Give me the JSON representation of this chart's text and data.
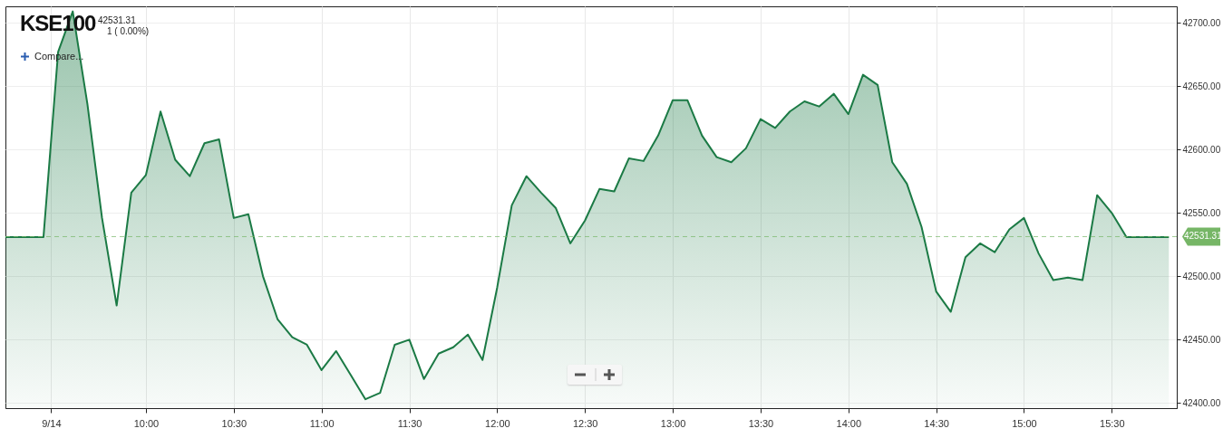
{
  "chart_data": {
    "type": "area",
    "title": "KSE100",
    "annotations": [
      "42531.31",
      "1 ( 0.00%)",
      "Compare..."
    ],
    "x": [
      9.2,
      9.4167,
      9.5,
      9.5833,
      9.6667,
      9.75,
      9.8333,
      9.9167,
      10,
      10.0833,
      10.1667,
      10.25,
      10.3333,
      10.4167,
      10.5,
      10.5833,
      10.6667,
      10.75,
      10.8333,
      10.9167,
      11,
      11.0833,
      11.1667,
      11.25,
      11.3333,
      11.4167,
      11.5,
      11.5833,
      11.6667,
      11.75,
      11.8333,
      11.9167,
      12,
      12.0833,
      12.1667,
      12.25,
      12.3333,
      12.4167,
      12.5,
      12.5833,
      12.6667,
      12.75,
      12.8333,
      12.9167,
      13,
      13.0833,
      13.1667,
      13.25,
      13.3333,
      13.4167,
      13.5,
      13.5833,
      13.6667,
      13.75,
      13.8333,
      13.9167,
      14,
      14.0833,
      14.1667,
      14.25,
      14.3333,
      14.4167,
      14.5,
      14.5833,
      14.6667,
      14.75,
      14.8333,
      14.9167,
      15,
      15.0833,
      15.1667,
      15.25,
      15.3333,
      15.4167,
      15.5,
      15.5833,
      15.825
    ],
    "series": [
      {
        "color": "#1b7a45",
        "values": [
          42531,
          42531,
          42677,
          42709,
          42636,
          42546,
          42477,
          42566,
          42580,
          42630,
          42592,
          42579,
          42605,
          42608,
          42546,
          42549,
          42500,
          42466,
          42452,
          42446,
          42426,
          42441,
          42422,
          42403,
          42408,
          42446,
          42450,
          42419,
          42439,
          42444,
          42454,
          42434,
          42491,
          42556,
          42579,
          42566,
          42554,
          42526,
          42544,
          42569,
          42567,
          42593,
          42591,
          42611,
          42639,
          42639,
          42611,
          42594,
          42590,
          42601,
          42624,
          42617,
          42630,
          42638,
          42634,
          42644,
          42628,
          42659,
          42651,
          42590,
          42573,
          42539,
          42488,
          42472,
          42515,
          42526,
          42519,
          42537,
          42546,
          42518,
          42497,
          42499,
          42497,
          42564,
          42550,
          42531,
          42531
        ]
      }
    ],
    "xlim": [
      9.2,
      15.87
    ],
    "xticks": [
      {
        "value": 9.46,
        "label": "9/14"
      },
      {
        "value": 10,
        "label": "10:00"
      },
      {
        "value": 10.5,
        "label": "10:30"
      },
      {
        "value": 11,
        "label": "11:00"
      },
      {
        "value": 11.5,
        "label": "11:30"
      },
      {
        "value": 12,
        "label": "12:00"
      },
      {
        "value": 12.5,
        "label": "12:30"
      },
      {
        "value": 13,
        "label": "13:00"
      },
      {
        "value": 13.5,
        "label": "13:30"
      },
      {
        "value": 14,
        "label": "14:00"
      },
      {
        "value": 14.5,
        "label": "14:30"
      },
      {
        "value": 15,
        "label": "15:00"
      },
      {
        "value": 15.5,
        "label": "15:30"
      }
    ],
    "ylim": [
      42396,
      42713
    ],
    "yticks": [
      {
        "value": 42400,
        "label": "42400.00"
      },
      {
        "value": 42450,
        "label": "42450.00"
      },
      {
        "value": 42500,
        "label": "42500.00"
      },
      {
        "value": 42550,
        "label": "42550.00"
      },
      {
        "value": 42600,
        "label": "42600.00"
      },
      {
        "value": 42650,
        "label": "42650.00"
      },
      {
        "value": 42700,
        "label": "42700.00"
      }
    ],
    "ref_lines": [
      {
        "axis": "y",
        "value": 42531.31,
        "label": "42531.31",
        "color": "#76b666",
        "line_style": "dashed"
      }
    ],
    "grid": true,
    "marker": "none",
    "line_style": "solid"
  }
}
